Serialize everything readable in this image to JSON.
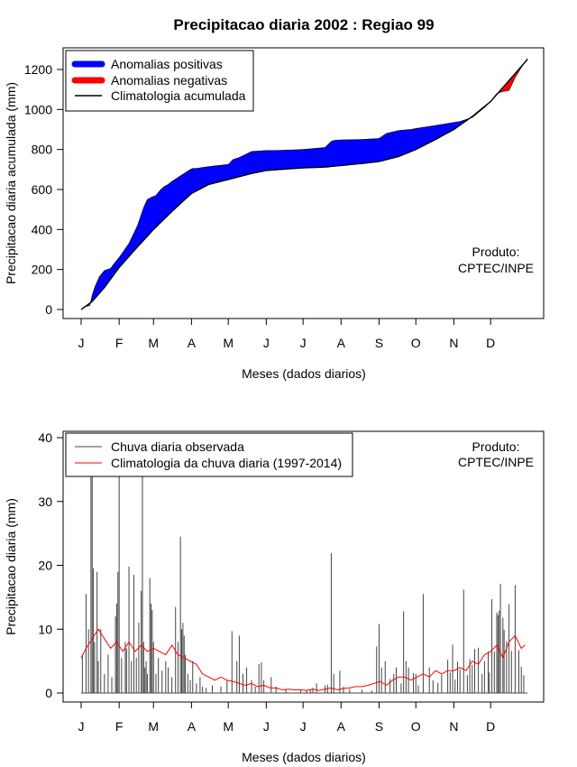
{
  "chart_data": [
    {
      "type": "area",
      "title": "Precipitacao diaria 2002 : Regiao 99",
      "xlabel": "Meses (dados diarios)",
      "ylabel": "Precipitacao diaria acumulada (mm)",
      "xlim": [
        1,
        365
      ],
      "ylim": [
        0,
        1250
      ],
      "month_labels": [
        "J",
        "F",
        "M",
        "A",
        "M",
        "J",
        "J",
        "A",
        "S",
        "O",
        "N",
        "D"
      ],
      "month_days": [
        1,
        32,
        60,
        91,
        121,
        152,
        182,
        213,
        244,
        274,
        305,
        335
      ],
      "yticks": [
        0,
        200,
        400,
        600,
        800,
        1000,
        1200
      ],
      "legend": [
        "Anomalias positivas",
        "Anomalias negativas",
        "Climatologia acumulada"
      ],
      "colors": {
        "positive": "#0000ff",
        "negative": "#ff0000",
        "climatology": "#000000"
      },
      "annotation": [
        "Produto:",
        "CPTEC/INPE"
      ],
      "climatology_cumulative": {
        "x": [
          1,
          10,
          20,
          32,
          45,
          60,
          75,
          91,
          105,
          121,
          140,
          152,
          170,
          182,
          200,
          213,
          230,
          244,
          260,
          274,
          290,
          305,
          320,
          335,
          345,
          355,
          365
        ],
        "y": [
          0,
          40,
          110,
          210,
          300,
          400,
          490,
          580,
          625,
          650,
          680,
          695,
          703,
          708,
          712,
          720,
          730,
          740,
          765,
          800,
          850,
          900,
          965,
          1040,
          1110,
          1180,
          1250
        ]
      },
      "observed_cumulative": {
        "x": [
          1,
          5,
          8,
          10,
          12,
          16,
          20,
          25,
          28,
          32,
          40,
          47,
          52,
          55,
          58,
          62,
          66,
          69,
          72,
          75,
          80,
          85,
          90,
          92,
          95,
          100,
          110,
          121,
          125,
          130,
          140,
          152,
          160,
          182,
          200,
          205,
          207,
          213,
          230,
          244,
          250,
          260,
          270,
          274,
          285,
          295,
          300,
          310,
          320,
          330,
          335,
          340,
          345,
          350,
          355,
          360,
          365
        ],
        "y": [
          0,
          15,
          20,
          70,
          110,
          165,
          195,
          205,
          230,
          260,
          330,
          420,
          510,
          550,
          560,
          570,
          600,
          615,
          625,
          640,
          660,
          680,
          700,
          705,
          705,
          710,
          718,
          725,
          750,
          760,
          790,
          795,
          795,
          800,
          810,
          840,
          845,
          848,
          850,
          855,
          880,
          895,
          900,
          905,
          915,
          925,
          930,
          940,
          960,
          1010,
          1040,
          1080,
          1090,
          1095,
          1160,
          1210,
          1255
        ]
      }
    },
    {
      "type": "bar",
      "xlabel": "Meses (dados diarios)",
      "ylabel": "Precipitacao diaria (mm)",
      "xlim": [
        1,
        365
      ],
      "ylim": [
        0,
        40
      ],
      "month_labels": [
        "J",
        "F",
        "M",
        "A",
        "M",
        "J",
        "J",
        "A",
        "S",
        "O",
        "N",
        "D"
      ],
      "month_days": [
        1,
        32,
        60,
        91,
        121,
        152,
        182,
        213,
        244,
        274,
        305,
        335
      ],
      "yticks": [
        0,
        10,
        20,
        30,
        40
      ],
      "legend": [
        "Chuva diaria observada",
        "Climatologia da chuva diaria (1997-2014)"
      ],
      "colors": {
        "observed": "#444444",
        "climatology": "#ff0000"
      },
      "annotation": [
        "Produto:",
        "CPTEC/INPE"
      ],
      "observed_daily": [
        [
          2,
          6
        ],
        [
          5,
          15.5
        ],
        [
          7,
          10
        ],
        [
          9,
          35
        ],
        [
          10,
          40
        ],
        [
          11,
          19.5
        ],
        [
          12,
          8
        ],
        [
          14,
          19
        ],
        [
          15,
          5
        ],
        [
          17,
          10
        ],
        [
          20,
          3
        ],
        [
          23,
          6
        ],
        [
          26,
          2.5
        ],
        [
          29,
          12
        ],
        [
          30,
          14
        ],
        [
          31,
          19
        ],
        [
          32,
          40
        ],
        [
          34,
          5.5
        ],
        [
          37,
          8
        ],
        [
          38,
          7
        ],
        [
          40,
          19.8
        ],
        [
          42,
          5
        ],
        [
          44,
          18.5
        ],
        [
          46,
          5.5
        ],
        [
          48,
          11
        ],
        [
          50,
          16
        ],
        [
          51,
          40
        ],
        [
          52,
          8
        ],
        [
          53,
          4
        ],
        [
          54,
          5
        ],
        [
          55,
          3
        ],
        [
          57,
          18
        ],
        [
          58,
          14
        ],
        [
          59,
          13
        ],
        [
          60,
          8
        ],
        [
          62,
          3
        ],
        [
          64,
          5.5
        ],
        [
          67,
          3.5
        ],
        [
          70,
          5
        ],
        [
          72,
          4
        ],
        [
          75,
          2.5
        ],
        [
          78,
          13.5
        ],
        [
          80,
          8
        ],
        [
          82,
          24.5
        ],
        [
          83,
          10
        ],
        [
          84,
          11
        ],
        [
          85,
          9
        ],
        [
          86,
          6
        ],
        [
          88,
          3
        ],
        [
          90,
          2
        ],
        [
          92,
          5
        ],
        [
          95,
          1.5
        ],
        [
          98,
          2.5
        ],
        [
          100,
          1
        ],
        [
          103,
          0.8
        ],
        [
          108,
          1.2
        ],
        [
          115,
          1
        ],
        [
          120,
          2
        ],
        [
          124,
          9.7
        ],
        [
          128,
          5
        ],
        [
          130,
          9
        ],
        [
          133,
          3
        ],
        [
          136,
          4
        ],
        [
          140,
          2
        ],
        [
          143,
          1
        ],
        [
          146,
          4.5
        ],
        [
          148,
          4.8
        ],
        [
          150,
          2
        ],
        [
          156,
          2.5
        ],
        [
          160,
          1
        ],
        [
          168,
          0.5
        ],
        [
          180,
          0.5
        ],
        [
          185,
          0.5
        ],
        [
          188,
          0.6
        ],
        [
          190,
          0.8
        ],
        [
          193,
          1.5
        ],
        [
          200,
          1.2
        ],
        [
          202,
          1.3
        ],
        [
          205,
          21.9
        ],
        [
          207,
          3
        ],
        [
          212,
          3.5
        ],
        [
          215,
          1
        ],
        [
          220,
          0.6
        ],
        [
          230,
          0.5
        ],
        [
          238,
          0.4
        ],
        [
          242,
          7.3
        ],
        [
          244,
          10.8
        ],
        [
          246,
          4
        ],
        [
          249,
          5
        ],
        [
          253,
          2.2
        ],
        [
          256,
          3
        ],
        [
          258,
          4
        ],
        [
          262,
          1.5
        ],
        [
          264,
          12.8
        ],
        [
          266,
          5
        ],
        [
          268,
          4
        ],
        [
          272,
          3.1
        ],
        [
          274,
          3
        ],
        [
          276,
          1.2
        ],
        [
          280,
          15.5
        ],
        [
          285,
          4
        ],
        [
          288,
          2
        ],
        [
          292,
          1.6
        ],
        [
          295,
          2.9
        ],
        [
          300,
          5.2
        ],
        [
          302,
          3.2
        ],
        [
          304,
          7.6
        ],
        [
          306,
          2.1
        ],
        [
          308,
          4.9
        ],
        [
          310,
          3.7
        ],
        [
          313,
          16.2
        ],
        [
          316,
          2.8
        ],
        [
          318,
          5.3
        ],
        [
          320,
          4.4
        ],
        [
          322,
          6.9
        ],
        [
          325,
          7.1
        ],
        [
          328,
          3
        ],
        [
          330,
          5
        ],
        [
          333,
          6.5
        ],
        [
          334,
          3.2
        ],
        [
          336,
          14.7
        ],
        [
          338,
          6.5
        ],
        [
          340,
          12.6
        ],
        [
          341,
          12.2
        ],
        [
          342,
          12.9
        ],
        [
          343,
          17.1
        ],
        [
          345,
          11.8
        ],
        [
          346,
          9.9
        ],
        [
          348,
          8.1
        ],
        [
          350,
          13.9
        ],
        [
          352,
          6.6
        ],
        [
          355,
          16.9
        ],
        [
          358,
          6.7
        ],
        [
          360,
          4.1
        ],
        [
          362,
          2.8
        ]
      ],
      "climatology_daily": {
        "x": [
          1,
          5,
          10,
          15,
          20,
          25,
          30,
          35,
          40,
          45,
          50,
          55,
          60,
          65,
          70,
          75,
          80,
          85,
          90,
          95,
          100,
          105,
          110,
          115,
          120,
          125,
          130,
          135,
          140,
          145,
          150,
          155,
          160,
          165,
          170,
          175,
          180,
          185,
          190,
          195,
          200,
          205,
          210,
          215,
          220,
          225,
          230,
          235,
          240,
          245,
          250,
          255,
          260,
          265,
          270,
          275,
          280,
          285,
          290,
          295,
          300,
          305,
          310,
          315,
          320,
          325,
          330,
          335,
          340,
          345,
          350,
          355,
          360,
          363
        ],
        "y": [
          5.5,
          7,
          8.5,
          10,
          8.5,
          7,
          8,
          6.5,
          8,
          6.5,
          7.5,
          6.5,
          7,
          6.5,
          6,
          7.5,
          6,
          5.5,
          5,
          4.5,
          3,
          2.5,
          2,
          2.5,
          2,
          1.8,
          1.5,
          1.2,
          1.5,
          1,
          1.2,
          0.8,
          0.8,
          0.5,
          0.6,
          0.5,
          0.5,
          0.4,
          0.6,
          0.4,
          0.6,
          0.8,
          0.5,
          0.7,
          0.8,
          1,
          1,
          1.2,
          1.5,
          1.8,
          1.2,
          2,
          2.5,
          2.5,
          2,
          2.5,
          3,
          2.5,
          3.5,
          3,
          3.5,
          3.5,
          4,
          3.5,
          5,
          4.5,
          6,
          6.5,
          7.5,
          5.5,
          8,
          9,
          7,
          7.5
        ]
      }
    }
  ]
}
